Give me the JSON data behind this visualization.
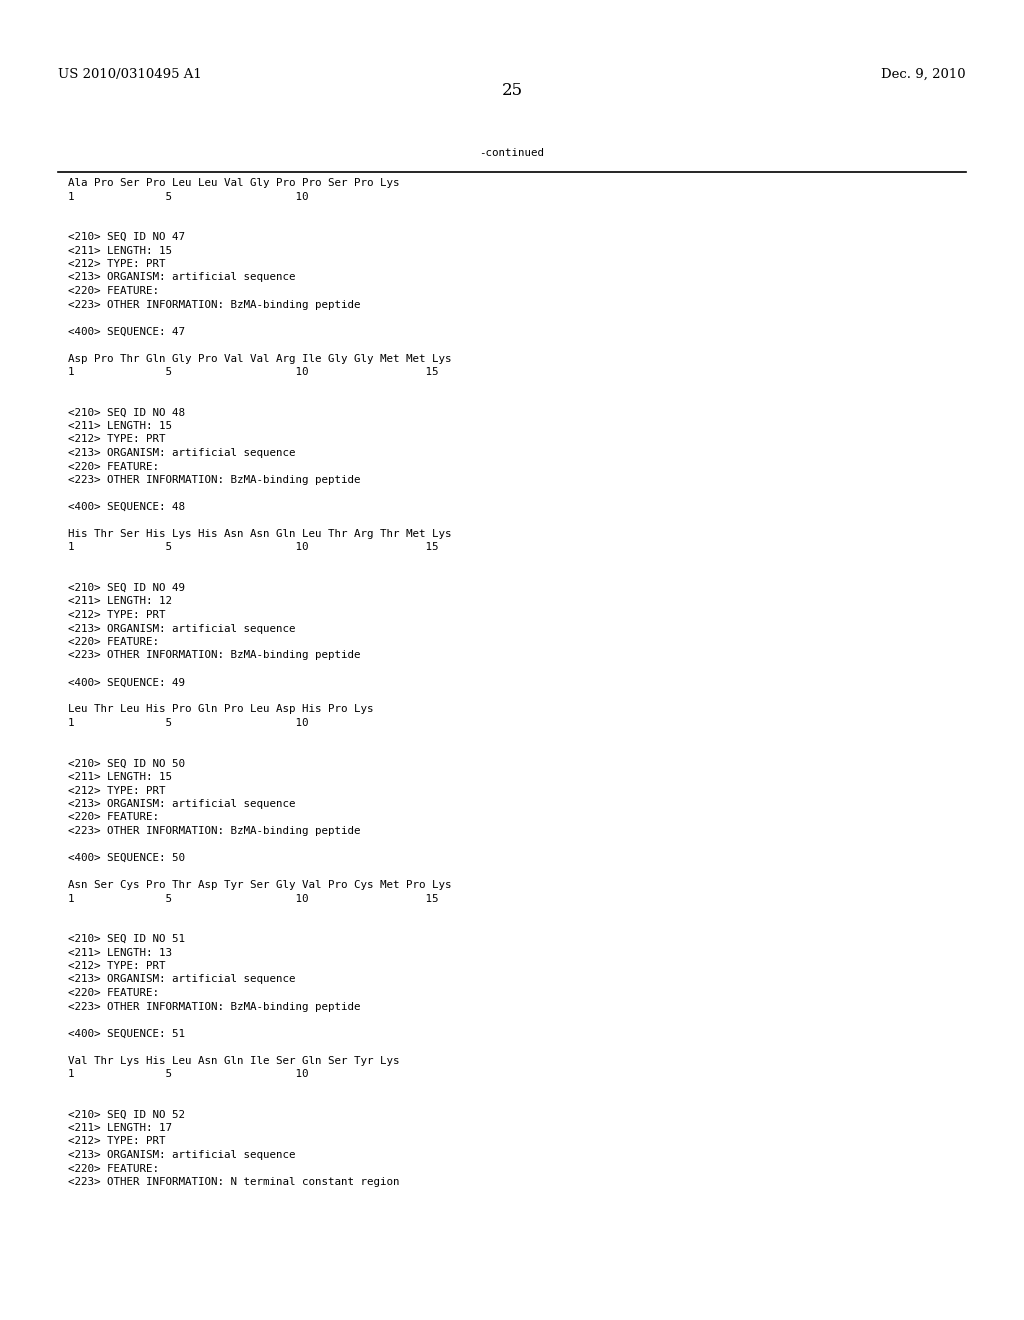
{
  "header_left": "US 2010/0310495 A1",
  "header_right": "Dec. 9, 2010",
  "page_number": "25",
  "continued_label": "-continued",
  "background_color": "#ffffff",
  "text_color": "#000000",
  "font_size_header": 9.5,
  "font_size_body": 7.8,
  "font_size_page": 12,
  "lines": [
    {
      "text": "Ala Pro Ser Pro Leu Leu Val Gly Pro Pro Ser Pro Lys",
      "type": "sequence"
    },
    {
      "text": "1              5                   10",
      "type": "numbering"
    },
    {
      "text": "",
      "type": "blank"
    },
    {
      "text": "",
      "type": "blank"
    },
    {
      "text": "<210> SEQ ID NO 47",
      "type": "meta"
    },
    {
      "text": "<211> LENGTH: 15",
      "type": "meta"
    },
    {
      "text": "<212> TYPE: PRT",
      "type": "meta"
    },
    {
      "text": "<213> ORGANISM: artificial sequence",
      "type": "meta"
    },
    {
      "text": "<220> FEATURE:",
      "type": "meta"
    },
    {
      "text": "<223> OTHER INFORMATION: BzMA-binding peptide",
      "type": "meta"
    },
    {
      "text": "",
      "type": "blank"
    },
    {
      "text": "<400> SEQUENCE: 47",
      "type": "meta"
    },
    {
      "text": "",
      "type": "blank"
    },
    {
      "text": "Asp Pro Thr Gln Gly Pro Val Val Arg Ile Gly Gly Met Met Lys",
      "type": "sequence"
    },
    {
      "text": "1              5                   10                  15",
      "type": "numbering"
    },
    {
      "text": "",
      "type": "blank"
    },
    {
      "text": "",
      "type": "blank"
    },
    {
      "text": "<210> SEQ ID NO 48",
      "type": "meta"
    },
    {
      "text": "<211> LENGTH: 15",
      "type": "meta"
    },
    {
      "text": "<212> TYPE: PRT",
      "type": "meta"
    },
    {
      "text": "<213> ORGANISM: artificial sequence",
      "type": "meta"
    },
    {
      "text": "<220> FEATURE:",
      "type": "meta"
    },
    {
      "text": "<223> OTHER INFORMATION: BzMA-binding peptide",
      "type": "meta"
    },
    {
      "text": "",
      "type": "blank"
    },
    {
      "text": "<400> SEQUENCE: 48",
      "type": "meta"
    },
    {
      "text": "",
      "type": "blank"
    },
    {
      "text": "His Thr Ser His Lys His Asn Asn Gln Leu Thr Arg Thr Met Lys",
      "type": "sequence"
    },
    {
      "text": "1              5                   10                  15",
      "type": "numbering"
    },
    {
      "text": "",
      "type": "blank"
    },
    {
      "text": "",
      "type": "blank"
    },
    {
      "text": "<210> SEQ ID NO 49",
      "type": "meta"
    },
    {
      "text": "<211> LENGTH: 12",
      "type": "meta"
    },
    {
      "text": "<212> TYPE: PRT",
      "type": "meta"
    },
    {
      "text": "<213> ORGANISM: artificial sequence",
      "type": "meta"
    },
    {
      "text": "<220> FEATURE:",
      "type": "meta"
    },
    {
      "text": "<223> OTHER INFORMATION: BzMA-binding peptide",
      "type": "meta"
    },
    {
      "text": "",
      "type": "blank"
    },
    {
      "text": "<400> SEQUENCE: 49",
      "type": "meta"
    },
    {
      "text": "",
      "type": "blank"
    },
    {
      "text": "Leu Thr Leu His Pro Gln Pro Leu Asp His Pro Lys",
      "type": "sequence"
    },
    {
      "text": "1              5                   10",
      "type": "numbering"
    },
    {
      "text": "",
      "type": "blank"
    },
    {
      "text": "",
      "type": "blank"
    },
    {
      "text": "<210> SEQ ID NO 50",
      "type": "meta"
    },
    {
      "text": "<211> LENGTH: 15",
      "type": "meta"
    },
    {
      "text": "<212> TYPE: PRT",
      "type": "meta"
    },
    {
      "text": "<213> ORGANISM: artificial sequence",
      "type": "meta"
    },
    {
      "text": "<220> FEATURE:",
      "type": "meta"
    },
    {
      "text": "<223> OTHER INFORMATION: BzMA-binding peptide",
      "type": "meta"
    },
    {
      "text": "",
      "type": "blank"
    },
    {
      "text": "<400> SEQUENCE: 50",
      "type": "meta"
    },
    {
      "text": "",
      "type": "blank"
    },
    {
      "text": "Asn Ser Cys Pro Thr Asp Tyr Ser Gly Val Pro Cys Met Pro Lys",
      "type": "sequence"
    },
    {
      "text": "1              5                   10                  15",
      "type": "numbering"
    },
    {
      "text": "",
      "type": "blank"
    },
    {
      "text": "",
      "type": "blank"
    },
    {
      "text": "<210> SEQ ID NO 51",
      "type": "meta"
    },
    {
      "text": "<211> LENGTH: 13",
      "type": "meta"
    },
    {
      "text": "<212> TYPE: PRT",
      "type": "meta"
    },
    {
      "text": "<213> ORGANISM: artificial sequence",
      "type": "meta"
    },
    {
      "text": "<220> FEATURE:",
      "type": "meta"
    },
    {
      "text": "<223> OTHER INFORMATION: BzMA-binding peptide",
      "type": "meta"
    },
    {
      "text": "",
      "type": "blank"
    },
    {
      "text": "<400> SEQUENCE: 51",
      "type": "meta"
    },
    {
      "text": "",
      "type": "blank"
    },
    {
      "text": "Val Thr Lys His Leu Asn Gln Ile Ser Gln Ser Tyr Lys",
      "type": "sequence"
    },
    {
      "text": "1              5                   10",
      "type": "numbering"
    },
    {
      "text": "",
      "type": "blank"
    },
    {
      "text": "",
      "type": "blank"
    },
    {
      "text": "<210> SEQ ID NO 52",
      "type": "meta"
    },
    {
      "text": "<211> LENGTH: 17",
      "type": "meta"
    },
    {
      "text": "<212> TYPE: PRT",
      "type": "meta"
    },
    {
      "text": "<213> ORGANISM: artificial sequence",
      "type": "meta"
    },
    {
      "text": "<220> FEATURE:",
      "type": "meta"
    },
    {
      "text": "<223> OTHER INFORMATION: N terminal constant region",
      "type": "meta"
    }
  ]
}
